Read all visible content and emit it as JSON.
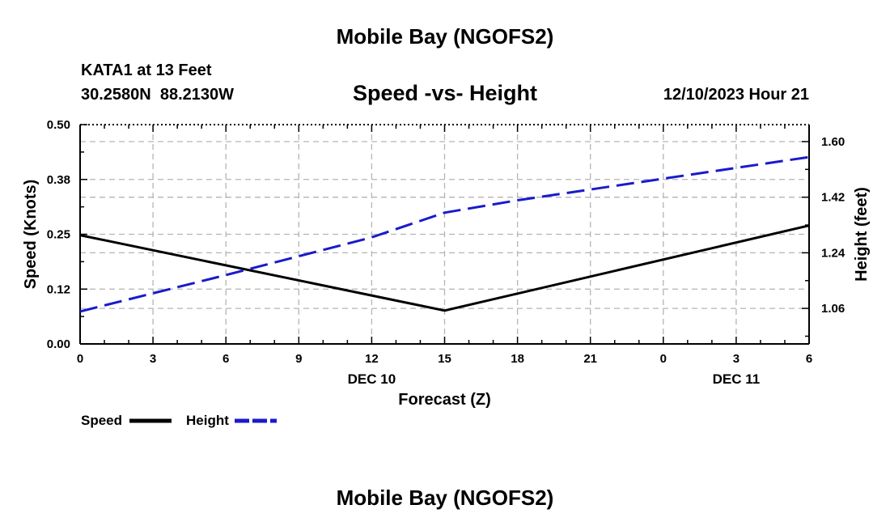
{
  "header": {
    "title": "Mobile Bay (NGOFS2)",
    "station": "KATA1 at 13 Feet",
    "coords": "30.2580N  88.2130W",
    "subtitle": "Speed -vs- Height",
    "datetime": "12/10/2023 Hour 21"
  },
  "footer": {
    "title": "Mobile Bay (NGOFS2)"
  },
  "legend": {
    "speed_label": "Speed",
    "height_label": "Height"
  },
  "colors": {
    "speed": "#000000",
    "height": "#1a1acc",
    "grid": "#b4b4b4"
  },
  "chart_data": {
    "type": "line",
    "title": "Speed -vs- Height",
    "xlabel": "Forecast (Z)",
    "ylabel_left": "Speed (Knots)",
    "ylabel_right": "Height (feet)",
    "x_hours": [
      0,
      3,
      6,
      9,
      12,
      15,
      18,
      21,
      24,
      27,
      30
    ],
    "x_tick_labels": [
      "0",
      "3",
      "6",
      "9",
      "12",
      "15",
      "18",
      "21",
      "0",
      "3",
      "6"
    ],
    "date_labels": [
      {
        "hour": 12,
        "label": "DEC 10"
      },
      {
        "hour": 27,
        "label": "DEC 11"
      }
    ],
    "y_left": {
      "range": [
        0,
        0.5
      ],
      "ticks": [
        0,
        0.125,
        0.25,
        0.375,
        0.5
      ],
      "tick_labels": [
        "0.00",
        "0.12",
        "0.25",
        "0.38",
        "0.50"
      ]
    },
    "y_right": {
      "range": [
        0.945,
        1.655
      ],
      "ticks": [
        1.06,
        1.24,
        1.42,
        1.6
      ],
      "tick_labels": [
        "1.06",
        "1.24",
        "1.42",
        "1.60"
      ]
    },
    "series": [
      {
        "name": "Speed",
        "axis": "left",
        "style": "solid",
        "x": [
          0,
          15,
          30
        ],
        "y": [
          0.248,
          0.076,
          0.27
        ]
      },
      {
        "name": "Height",
        "axis": "right",
        "style": "dashed",
        "x": [
          0,
          6,
          12,
          15,
          18,
          24,
          30
        ],
        "y": [
          1.05,
          1.168,
          1.29,
          1.37,
          1.41,
          1.48,
          1.55
        ]
      }
    ],
    "grid": true
  }
}
